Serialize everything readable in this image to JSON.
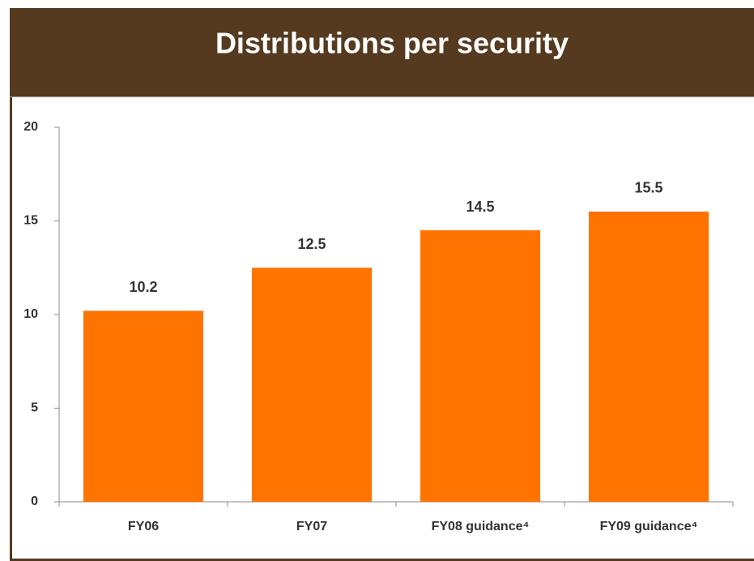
{
  "chart_data": {
    "type": "bar",
    "title": "Distributions per security",
    "categories": [
      "FY06",
      "FY07",
      "FY08 guidance⁴",
      "FY09 guidance⁴"
    ],
    "values": [
      10.2,
      12.5,
      14.5,
      15.5
    ],
    "color": "#ff7300",
    "ylim": [
      0,
      20
    ],
    "yticks": [
      0,
      5,
      10,
      15,
      20
    ],
    "grid": false
  }
}
